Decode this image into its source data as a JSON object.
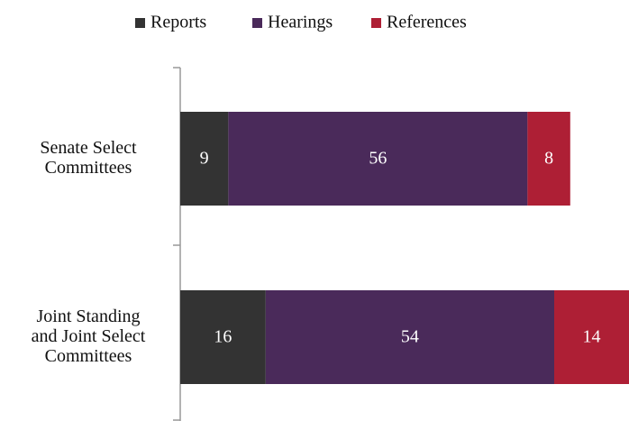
{
  "chart_data": {
    "type": "stacked-barh",
    "categories": [
      "Senate Select\nCommittees",
      "Joint Standing\nand Joint Select\nCommittees"
    ],
    "series": [
      {
        "name": "Reports",
        "color": "#333333",
        "values": [
          9,
          16
        ]
      },
      {
        "name": "Hearings",
        "color": "#4a2a5a",
        "values": [
          56,
          54
        ]
      },
      {
        "name": "References",
        "color": "#ae1f35",
        "values": [
          8,
          14
        ]
      }
    ],
    "legend": "top"
  }
}
